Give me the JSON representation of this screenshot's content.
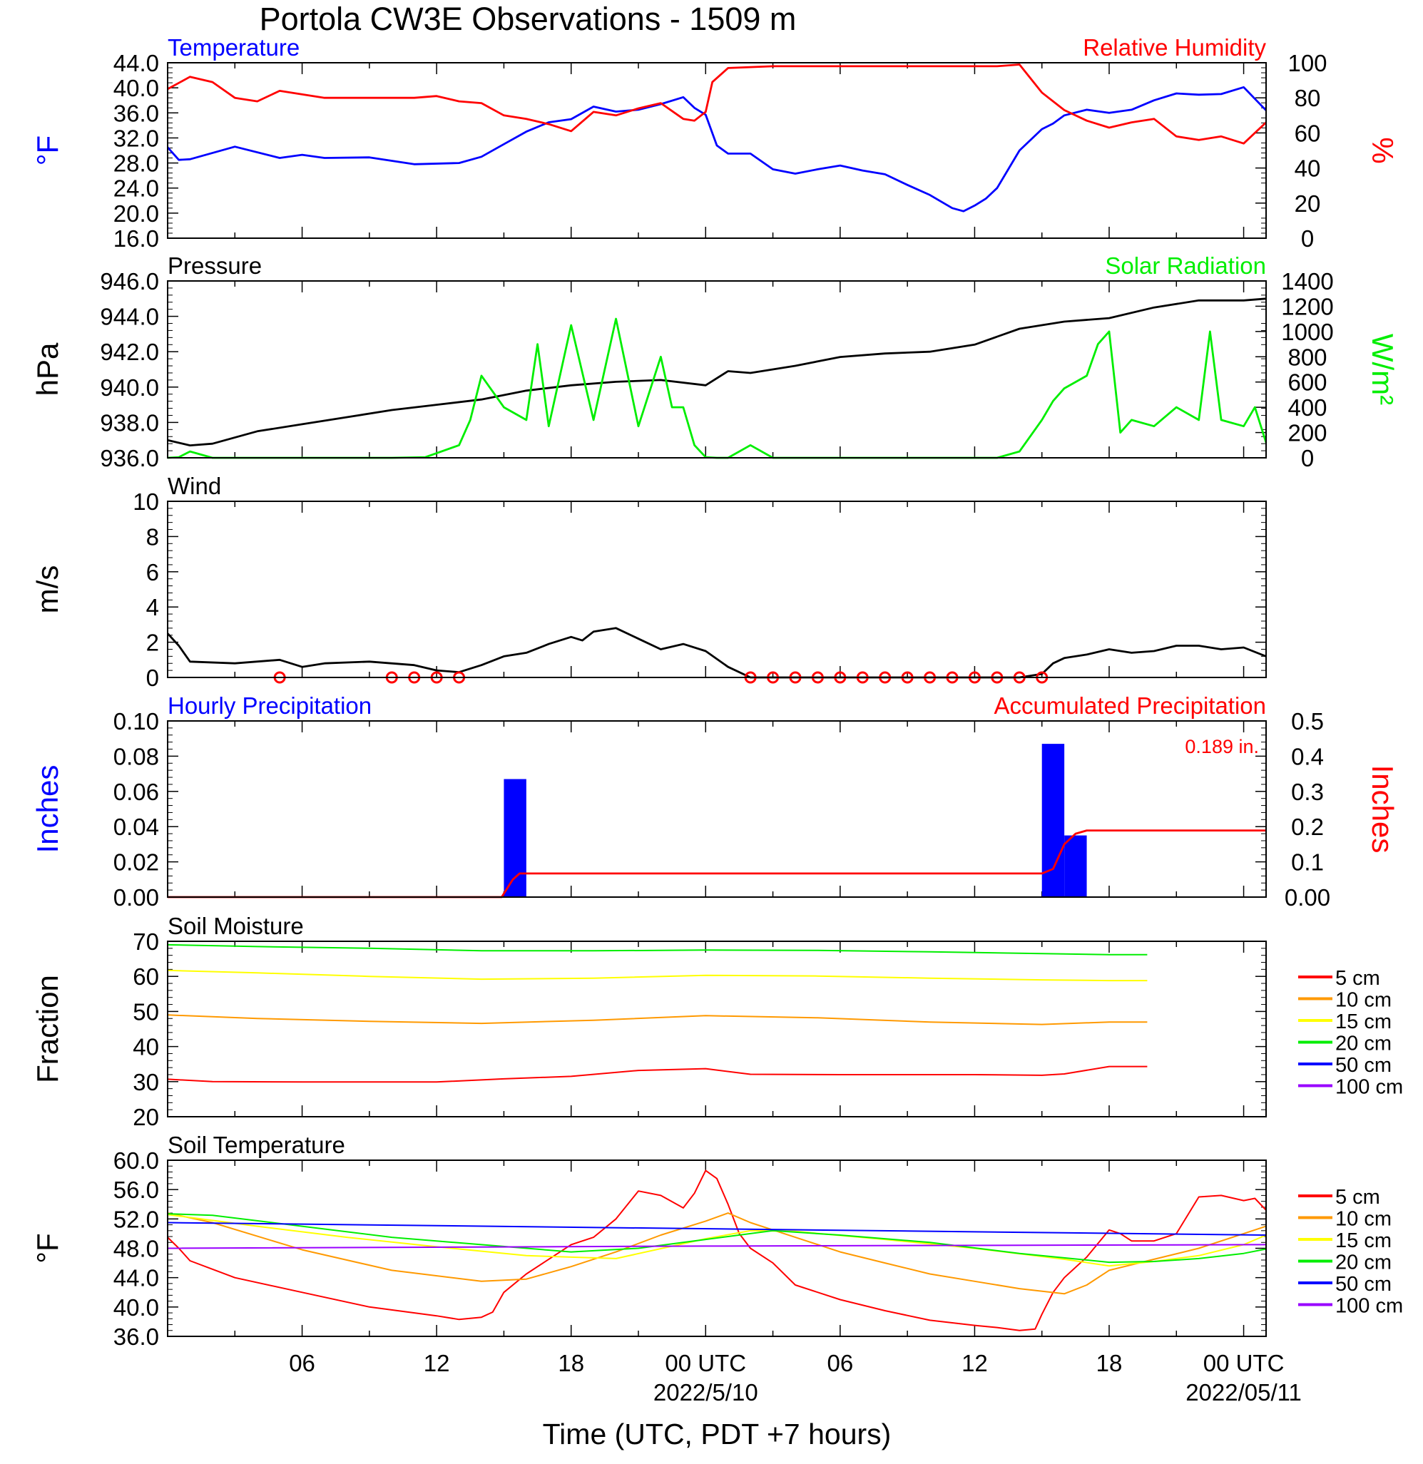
{
  "title": "Portola CW3E Observations - 1509 m",
  "xlabel": "Time (UTC, PDT +7 hours)",
  "x_axis": {
    "range_hours": [
      -24,
      25
    ],
    "tick_hours": [
      -18,
      -12,
      -6,
      0,
      6,
      12,
      18,
      24
    ],
    "tick_labels": [
      "06",
      "12",
      "18",
      "00 UTC",
      "06",
      "12",
      "18",
      "00 UTC"
    ],
    "date_labels": [
      {
        "hour": 0,
        "text": "2022/5/10"
      },
      {
        "hour": 24,
        "text": "2022/05/11"
      }
    ]
  },
  "chart_data": [
    {
      "type": "line",
      "title_left": "Temperature",
      "title_right": "Relative Humidity",
      "ylabel_left": "°F",
      "ylabel_right": "%",
      "ylim_left": [
        16,
        44
      ],
      "ylim_right": [
        0,
        100
      ],
      "yticks_left": [
        "16.0",
        "20.0",
        "24.0",
        "28.0",
        "32.0",
        "36.0",
        "40.0",
        "44.0"
      ],
      "yticks_right": [
        "0",
        "20",
        "40",
        "60",
        "80",
        "100"
      ],
      "colors": {
        "left": "#0000ff",
        "right": "#ff0000"
      },
      "series": [
        {
          "axis": "left",
          "color": "#0000ff",
          "x": [
            -24,
            -23.5,
            -23,
            -21,
            -19,
            -18,
            -17,
            -15,
            -13,
            -11,
            -10,
            -9,
            -8,
            -7,
            -6,
            -5,
            -4,
            -3,
            -2,
            -1,
            -0.5,
            0,
            0.5,
            1,
            2,
            3,
            4,
            5,
            6,
            7,
            8,
            9,
            10,
            11,
            11.5,
            12,
            12.5,
            13,
            14,
            15,
            15.5,
            16,
            17,
            18,
            19,
            20,
            21,
            22,
            23,
            24,
            25
          ],
          "y": [
            30.5,
            28.5,
            28.6,
            30.6,
            28.8,
            29.3,
            28.8,
            28.9,
            27.8,
            28.0,
            29.0,
            31.0,
            33.0,
            34.5,
            35.0,
            37.0,
            36.2,
            36.5,
            37.4,
            38.5,
            36.8,
            35.7,
            30.8,
            29.5,
            29.5,
            27.0,
            26.3,
            27.0,
            27.6,
            26.8,
            26.2,
            24.5,
            22.9,
            20.8,
            20.3,
            21.2,
            22.3,
            24.0,
            30.0,
            33.4,
            34.3,
            35.6,
            36.5,
            36.0,
            36.5,
            38.0,
            39.1,
            38.9,
            39.0,
            40.1,
            36.4
          ]
        },
        {
          "axis": "right",
          "color": "#ff0000",
          "x": [
            -24,
            -23,
            -22,
            -21,
            -20,
            -19,
            -17,
            -15,
            -13,
            -12,
            -11,
            -10,
            -9,
            -8,
            -7,
            -6,
            -5,
            -4,
            -3,
            -2,
            -1,
            -0.5,
            0,
            0.3,
            1,
            3,
            6,
            9,
            12,
            13,
            14,
            15,
            16,
            17,
            18,
            19,
            20,
            21,
            22,
            23,
            24,
            25
          ],
          "y": [
            85,
            92,
            89,
            80,
            78,
            84,
            80,
            80,
            80,
            81,
            78,
            77,
            70,
            68,
            65,
            61,
            72,
            70,
            74,
            77,
            68,
            67,
            72,
            89,
            97,
            98,
            98,
            98,
            98,
            98,
            99,
            83,
            73,
            67,
            63,
            66,
            68,
            58,
            56,
            58,
            54,
            66
          ]
        }
      ]
    },
    {
      "type": "line",
      "title_left": "Pressure",
      "title_right": "Solar Radiation",
      "ylabel_left": "hPa",
      "ylabel_right": "W/m²",
      "ylim_left": [
        936,
        946
      ],
      "ylim_right": [
        0,
        1400
      ],
      "yticks_left": [
        "936.0",
        "938.0",
        "940.0",
        "942.0",
        "944.0",
        "946.0"
      ],
      "yticks_right": [
        "0",
        "200",
        "400",
        "600",
        "800",
        "1000",
        "1200",
        "1400"
      ],
      "colors": {
        "left": "#000000",
        "right": "#00ee00"
      },
      "series": [
        {
          "axis": "left",
          "color": "#000000",
          "x": [
            -24,
            -23,
            -22,
            -20,
            -18,
            -16,
            -14,
            -12,
            -10,
            -8,
            -6,
            -4,
            -2,
            0,
            1,
            2,
            4,
            6,
            8,
            10,
            12,
            14,
            16,
            18,
            20,
            22,
            24,
            25
          ],
          "y": [
            937.0,
            936.7,
            936.8,
            937.5,
            937.9,
            938.3,
            938.7,
            939.0,
            939.3,
            939.8,
            940.1,
            940.3,
            940.4,
            940.1,
            940.9,
            940.8,
            941.2,
            941.7,
            941.9,
            942.0,
            942.4,
            943.3,
            943.7,
            943.9,
            944.5,
            944.9,
            944.9,
            945.0
          ]
        },
        {
          "axis": "right",
          "color": "#00ee00",
          "x": [
            -24,
            -23.5,
            -23,
            -22,
            -16,
            -14,
            -12.5,
            -11,
            -10.5,
            -10,
            -9,
            -8,
            -7.5,
            -7,
            -6,
            -5,
            -4,
            -3,
            -2,
            -1.5,
            -1,
            -0.5,
            0,
            0.5,
            1,
            2,
            3,
            4,
            6,
            8,
            10,
            12,
            13,
            14,
            15,
            15.5,
            16,
            17,
            17.5,
            18,
            18.5,
            19,
            20,
            21,
            22,
            22.5,
            23,
            24,
            24.5,
            25
          ],
          "y": [
            0,
            5,
            50,
            0,
            0,
            0,
            5,
            100,
            300,
            650,
            400,
            300,
            900,
            250,
            1050,
            300,
            1100,
            250,
            800,
            400,
            400,
            100,
            5,
            0,
            0,
            100,
            0,
            0,
            0,
            0,
            0,
            0,
            0,
            50,
            300,
            450,
            550,
            650,
            900,
            1000,
            200,
            300,
            250,
            400,
            300,
            1000,
            300,
            250,
            400,
            120
          ]
        }
      ]
    },
    {
      "type": "line",
      "title_left": "Wind",
      "ylabel_left": "m/s",
      "ylim_left": [
        0,
        10
      ],
      "yticks_left": [
        "0",
        "2",
        "4",
        "6",
        "8",
        "10"
      ],
      "series": [
        {
          "axis": "left",
          "color": "#000000",
          "x": [
            -24,
            -23.5,
            -23,
            -21,
            -19,
            -18,
            -17,
            -15,
            -13,
            -12,
            -11,
            -10,
            -9,
            -8,
            -7,
            -6,
            -5.5,
            -5,
            -4,
            -3,
            -2,
            -1,
            0,
            1,
            2,
            3,
            6,
            9,
            12,
            13,
            14,
            15,
            15.5,
            16,
            17,
            18,
            19,
            20,
            21,
            22,
            23,
            24,
            25
          ],
          "y": [
            2.5,
            1.8,
            0.9,
            0.8,
            1.0,
            0.6,
            0.8,
            0.9,
            0.7,
            0.4,
            0.3,
            0.7,
            1.2,
            1.4,
            1.9,
            2.3,
            2.1,
            2.6,
            2.8,
            2.2,
            1.6,
            1.9,
            1.5,
            0.6,
            0,
            0,
            0,
            0,
            0,
            0,
            0,
            0.2,
            0.8,
            1.1,
            1.3,
            1.6,
            1.4,
            1.5,
            1.8,
            1.8,
            1.6,
            1.7,
            1.2
          ]
        }
      ],
      "calm_markers_hours": [
        -19,
        -14,
        -13,
        -12,
        -11,
        2,
        3,
        4,
        5,
        6,
        7,
        8,
        9,
        10,
        11,
        12,
        13,
        14,
        15
      ]
    },
    {
      "type": "bar",
      "title_left": "Hourly Precipitation",
      "title_right": "Accumulated Precipitation",
      "annotation": "0.189 in.",
      "ylabel_left": "Inches",
      "ylabel_right": "Inches",
      "ylim_left": [
        0,
        0.1
      ],
      "ylim_right": [
        0,
        0.5
      ],
      "yticks_left": [
        "0.00",
        "0.02",
        "0.04",
        "0.06",
        "0.08",
        "0.10"
      ],
      "yticks_right": [
        "0.00",
        "0.1",
        "0.2",
        "0.3",
        "0.4",
        "0.5"
      ],
      "colors": {
        "left": "#0000ff",
        "right": "#ff0000"
      },
      "bars": [
        {
          "start": -9,
          "end": -8,
          "value": 0.067
        },
        {
          "start": 15,
          "end": 16,
          "value": 0.087
        },
        {
          "start": 16,
          "end": 17,
          "value": 0.035
        }
      ],
      "series": [
        {
          "axis": "right",
          "color": "#ff0000",
          "x": [
            -24,
            -9.1,
            -8.6,
            -8.3,
            15,
            15.5,
            16,
            16.5,
            17,
            25
          ],
          "y": [
            0,
            0,
            0.05,
            0.067,
            0.067,
            0.08,
            0.15,
            0.18,
            0.189,
            0.189
          ]
        }
      ]
    },
    {
      "type": "line",
      "title_left": "Soil Moisture",
      "ylabel_left": "Fraction",
      "ylim_left": [
        20,
        70
      ],
      "yticks_left": [
        "20",
        "30",
        "40",
        "50",
        "60",
        "70"
      ],
      "legend": [
        {
          "name": "5 cm",
          "color": "#ff0000"
        },
        {
          "name": "10 cm",
          "color": "#ff9900"
        },
        {
          "name": "15 cm",
          "color": "#ffff00"
        },
        {
          "name": "20 cm",
          "color": "#00ee00"
        },
        {
          "name": "50 cm",
          "color": "#0000ff"
        },
        {
          "name": "100 cm",
          "color": "#9900ff"
        }
      ],
      "legend_position": "right",
      "series": [
        {
          "color": "#ff0000",
          "x": [
            -24,
            -22,
            -18,
            -12,
            -9,
            -6,
            -3,
            0,
            2,
            6,
            12,
            15,
            16,
            18,
            19.7
          ],
          "y": [
            30.7,
            30.0,
            29.9,
            29.9,
            30.8,
            31.5,
            33.2,
            33.7,
            32.1,
            32.0,
            32.0,
            31.8,
            32.2,
            34.3,
            34.3
          ]
        },
        {
          "color": "#ff9900",
          "x": [
            -24,
            -20,
            -15,
            -10,
            -5,
            0,
            5,
            10,
            15,
            18,
            19.7
          ],
          "y": [
            49,
            48,
            47.2,
            46.6,
            47.5,
            48.8,
            48.2,
            47.0,
            46.3,
            47.0,
            47.0
          ]
        },
        {
          "color": "#ffff00",
          "x": [
            -24,
            -20,
            -15,
            -10,
            -5,
            0,
            5,
            10,
            15,
            18,
            19.7
          ],
          "y": [
            61.7,
            61,
            60,
            59.2,
            59.5,
            60.3,
            60.1,
            59.5,
            59,
            58.8,
            58.8
          ]
        },
        {
          "color": "#00ee00",
          "x": [
            -24,
            -20,
            -15,
            -10,
            -5,
            0,
            5,
            10,
            15,
            18,
            19.7
          ],
          "y": [
            69,
            68.5,
            68,
            67.3,
            67.3,
            67.5,
            67.4,
            67,
            66.5,
            66.2,
            66.2
          ]
        }
      ]
    },
    {
      "type": "line",
      "title_left": "Soil Temperature",
      "ylabel_left": "°F",
      "ylim_left": [
        36,
        60
      ],
      "yticks_left": [
        "36.0",
        "40.0",
        "44.0",
        "48.0",
        "52.0",
        "56.0",
        "60.0"
      ],
      "legend": [
        {
          "name": "5 cm",
          "color": "#ff0000"
        },
        {
          "name": "10 cm",
          "color": "#ff9900"
        },
        {
          "name": "15 cm",
          "color": "#ffff00"
        },
        {
          "name": "20 cm",
          "color": "#00ee00"
        },
        {
          "name": "50 cm",
          "color": "#0000ff"
        },
        {
          "name": "100 cm",
          "color": "#9900ff"
        }
      ],
      "legend_position": "right",
      "series": [
        {
          "color": "#ff0000",
          "x": [
            -24,
            -23.5,
            -23,
            -21,
            -18,
            -15,
            -12,
            -11,
            -10,
            -9.5,
            -9,
            -8,
            -7,
            -6,
            -5,
            -4,
            -3,
            -2,
            -1,
            -0.5,
            0,
            0.5,
            1,
            1.5,
            2,
            3,
            4,
            6,
            8,
            10,
            12,
            13,
            14,
            14.7,
            15,
            15.5,
            16,
            17,
            18,
            18.5,
            19,
            20,
            21,
            22,
            23,
            24,
            24.5,
            25
          ],
          "y": [
            49.5,
            48,
            46.3,
            44,
            42,
            40,
            38.8,
            38.3,
            38.6,
            39.3,
            42,
            44.5,
            46.5,
            48.5,
            49.5,
            52,
            55.8,
            55.2,
            53.5,
            55.5,
            58.6,
            57.5,
            54,
            50,
            48,
            46,
            43,
            41,
            39.5,
            38.2,
            37.5,
            37.2,
            36.8,
            37,
            39,
            42,
            44,
            46.8,
            50.5,
            50,
            49,
            49,
            50,
            55,
            55.2,
            54.5,
            54.8,
            53.2
          ]
        },
        {
          "color": "#ff9900",
          "x": [
            -24,
            -22,
            -18,
            -14,
            -10,
            -8,
            -6,
            -4,
            -2,
            0,
            1,
            2,
            4,
            6,
            8,
            10,
            12,
            14,
            16,
            17,
            18,
            20,
            22,
            24,
            25
          ],
          "y": [
            52.8,
            51.5,
            47.8,
            45,
            43.5,
            43.8,
            45.5,
            47.5,
            49.8,
            51.7,
            52.8,
            51.5,
            49.5,
            47.5,
            46,
            44.5,
            43.5,
            42.5,
            41.8,
            43,
            45,
            46.5,
            48,
            50,
            51
          ]
        },
        {
          "color": "#ffff00",
          "x": [
            -24,
            -20,
            -16,
            -12,
            -8,
            -4,
            0,
            2,
            4,
            8,
            12,
            16,
            18,
            20,
            22,
            24,
            25
          ],
          "y": [
            52.6,
            51,
            49.5,
            48.2,
            47.0,
            46.6,
            49.3,
            50.4,
            50.3,
            49.2,
            48,
            46.5,
            45.6,
            46.2,
            47.0,
            48.5,
            49.8
          ]
        },
        {
          "color": "#00ee00",
          "x": [
            -24,
            -22,
            -18,
            -14,
            -10,
            -6,
            -3,
            0,
            3,
            6,
            10,
            14,
            18,
            20,
            22,
            24,
            25
          ],
          "y": [
            52.7,
            52.5,
            51,
            49.5,
            48.5,
            47.5,
            48.0,
            49.2,
            50.4,
            49.8,
            48.8,
            47.3,
            46.1,
            46.2,
            46.6,
            47.3,
            47.9
          ]
        },
        {
          "color": "#0000ff",
          "x": [
            -24,
            25
          ],
          "y": [
            51.5,
            49.8
          ]
        },
        {
          "color": "#9900ff",
          "x": [
            -24,
            0,
            25
          ],
          "y": [
            48.0,
            48.3,
            48.5
          ]
        }
      ]
    }
  ]
}
